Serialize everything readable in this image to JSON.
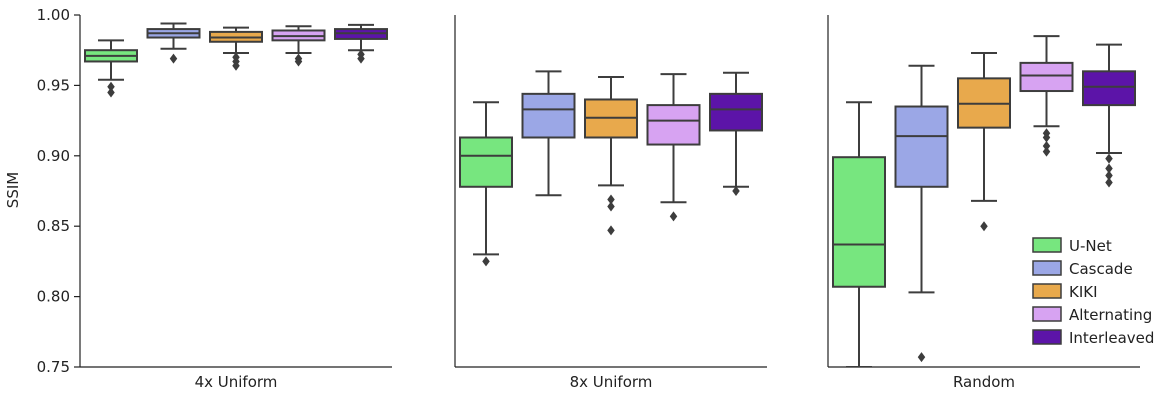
{
  "chart_data": {
    "type": "box",
    "ylabel": "SSIM",
    "ylim": [
      0.75,
      1.0
    ],
    "yticks": [
      "0.75",
      "0.80",
      "0.85",
      "0.90",
      "0.95",
      "1.00"
    ],
    "legend_placement": "bottom-right",
    "legend": [
      "U-Net",
      "Cascade",
      "KIKI",
      "Alternating",
      "Interleaved"
    ],
    "colors": {
      "U-Net": "#77e67f",
      "Cascade": "#9ba7e6",
      "KIKI": "#e8a94c",
      "Alternating": "#d7a3f2",
      "Interleaved": "#5c14a8"
    },
    "panels": [
      {
        "xlabel": "4x Uniform",
        "boxes": [
          {
            "series": "U-Net",
            "whislo": 0.954,
            "q1": 0.967,
            "med": 0.971,
            "q3": 0.975,
            "whishi": 0.982,
            "fliers": [
              0.949,
              0.945
            ]
          },
          {
            "series": "Cascade",
            "whislo": 0.976,
            "q1": 0.984,
            "med": 0.987,
            "q3": 0.99,
            "whishi": 0.994,
            "fliers": [
              0.969
            ]
          },
          {
            "series": "KIKI",
            "whislo": 0.973,
            "q1": 0.981,
            "med": 0.984,
            "q3": 0.988,
            "whishi": 0.991,
            "fliers": [
              0.97,
              0.967,
              0.964
            ]
          },
          {
            "series": "Alternating",
            "whislo": 0.973,
            "q1": 0.982,
            "med": 0.985,
            "q3": 0.989,
            "whishi": 0.992,
            "fliers": [
              0.969,
              0.967
            ]
          },
          {
            "series": "Interleaved",
            "whislo": 0.975,
            "q1": 0.983,
            "med": 0.987,
            "q3": 0.99,
            "whishi": 0.993,
            "fliers": [
              0.972,
              0.969
            ]
          }
        ]
      },
      {
        "xlabel": "8x Uniform",
        "boxes": [
          {
            "series": "U-Net",
            "whislo": 0.83,
            "q1": 0.878,
            "med": 0.9,
            "q3": 0.913,
            "whishi": 0.938,
            "fliers": [
              0.825
            ]
          },
          {
            "series": "Cascade",
            "whislo": 0.872,
            "q1": 0.913,
            "med": 0.933,
            "q3": 0.944,
            "whishi": 0.96,
            "fliers": []
          },
          {
            "series": "KIKI",
            "whislo": 0.879,
            "q1": 0.913,
            "med": 0.927,
            "q3": 0.94,
            "whishi": 0.956,
            "fliers": [
              0.869,
              0.864,
              0.847
            ]
          },
          {
            "series": "Alternating",
            "whislo": 0.867,
            "q1": 0.908,
            "med": 0.925,
            "q3": 0.936,
            "whishi": 0.958,
            "fliers": [
              0.857
            ]
          },
          {
            "series": "Interleaved",
            "whislo": 0.878,
            "q1": 0.918,
            "med": 0.933,
            "q3": 0.944,
            "whishi": 0.959,
            "fliers": [
              0.875
            ]
          }
        ]
      },
      {
        "xlabel": "Random",
        "boxes": [
          {
            "series": "U-Net",
            "whislo": 0.75,
            "q1": 0.807,
            "med": 0.837,
            "q3": 0.899,
            "whishi": 0.938,
            "fliers": []
          },
          {
            "series": "Cascade",
            "whislo": 0.803,
            "q1": 0.878,
            "med": 0.914,
            "q3": 0.935,
            "whishi": 0.964,
            "fliers": [
              0.757
            ]
          },
          {
            "series": "KIKI",
            "whislo": 0.868,
            "q1": 0.92,
            "med": 0.937,
            "q3": 0.955,
            "whishi": 0.973,
            "fliers": [
              0.85
            ]
          },
          {
            "series": "Alternating",
            "whislo": 0.921,
            "q1": 0.946,
            "med": 0.957,
            "q3": 0.966,
            "whishi": 0.985,
            "fliers": [
              0.916,
              0.913,
              0.907,
              0.903
            ]
          },
          {
            "series": "Interleaved",
            "whislo": 0.902,
            "q1": 0.936,
            "med": 0.949,
            "q3": 0.96,
            "whishi": 0.979,
            "fliers": [
              0.898,
              0.891,
              0.886,
              0.881
            ]
          }
        ]
      }
    ]
  }
}
